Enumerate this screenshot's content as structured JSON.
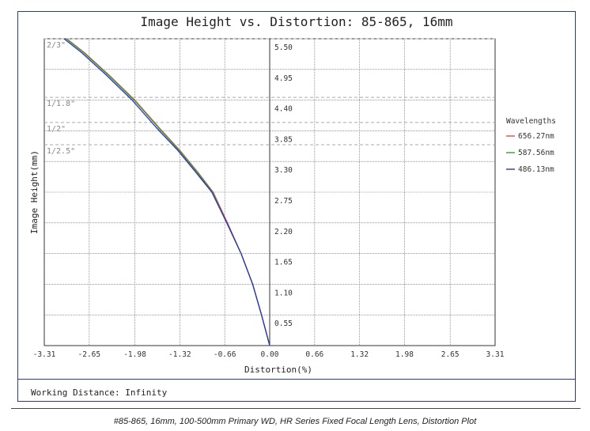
{
  "chart_data": {
    "type": "line",
    "title": "Image Height vs. Distortion: 85-865, 16mm",
    "xlabel": "Distortion(%)",
    "ylabel": "Image Height(mm)",
    "xlim": [
      -3.31,
      3.31
    ],
    "ylim": [
      0,
      5.5
    ],
    "x_ticks": [
      "-3.31",
      "-2.65",
      "-1.98",
      "-1.32",
      "-0.66",
      "0.00",
      "0.66",
      "1.32",
      "1.98",
      "2.65",
      "3.31"
    ],
    "y_ticks": [
      "0.55",
      "1.10",
      "1.65",
      "2.20",
      "2.75",
      "3.30",
      "3.85",
      "4.40",
      "4.95",
      "5.50"
    ],
    "grid": true,
    "legend_title": "Wavelengths",
    "legend_position": "right",
    "sensor_formats": [
      {
        "label": "2/3\"",
        "height": 5.5
      },
      {
        "label": "1/1.8\"",
        "height": 4.45
      },
      {
        "label": "1/2\"",
        "height": 4.0
      },
      {
        "label": "1/2.5\"",
        "height": 3.6
      }
    ],
    "series": [
      {
        "name": "656.27nm",
        "color": "#e8484b",
        "x": [
          0,
          -0.12,
          -0.25,
          -0.42,
          -0.62,
          -0.83,
          -1.05,
          -1.32,
          -1.62,
          -1.98,
          -2.36,
          -2.72,
          -2.98
        ],
        "y": [
          0,
          0.55,
          1.1,
          1.65,
          2.2,
          2.75,
          3.1,
          3.5,
          3.9,
          4.4,
          4.85,
          5.25,
          5.5
        ]
      },
      {
        "name": "587.56nm",
        "color": "#3a9a3a",
        "x": [
          0,
          -0.12,
          -0.25,
          -0.42,
          -0.63,
          -0.84,
          -1.06,
          -1.33,
          -1.63,
          -1.99,
          -2.37,
          -2.73,
          -2.99
        ],
        "y": [
          0,
          0.55,
          1.1,
          1.65,
          2.2,
          2.75,
          3.1,
          3.5,
          3.9,
          4.4,
          4.85,
          5.25,
          5.5
        ]
      },
      {
        "name": "486.13nm",
        "color": "#2a36b1",
        "x": [
          0,
          -0.12,
          -0.25,
          -0.42,
          -0.63,
          -0.85,
          -1.08,
          -1.35,
          -1.66,
          -2.02,
          -2.4,
          -2.76,
          -3.02
        ],
        "y": [
          0,
          0.55,
          1.1,
          1.65,
          2.2,
          2.75,
          3.1,
          3.5,
          3.9,
          4.4,
          4.85,
          5.25,
          5.5
        ]
      }
    ]
  },
  "footer": {
    "working_distance": "Working Distance: Infinity"
  },
  "caption": "#85-865, 16mm, 100-500mm Primary WD, HR Series Fixed Focal Length Lens, Distortion Plot"
}
